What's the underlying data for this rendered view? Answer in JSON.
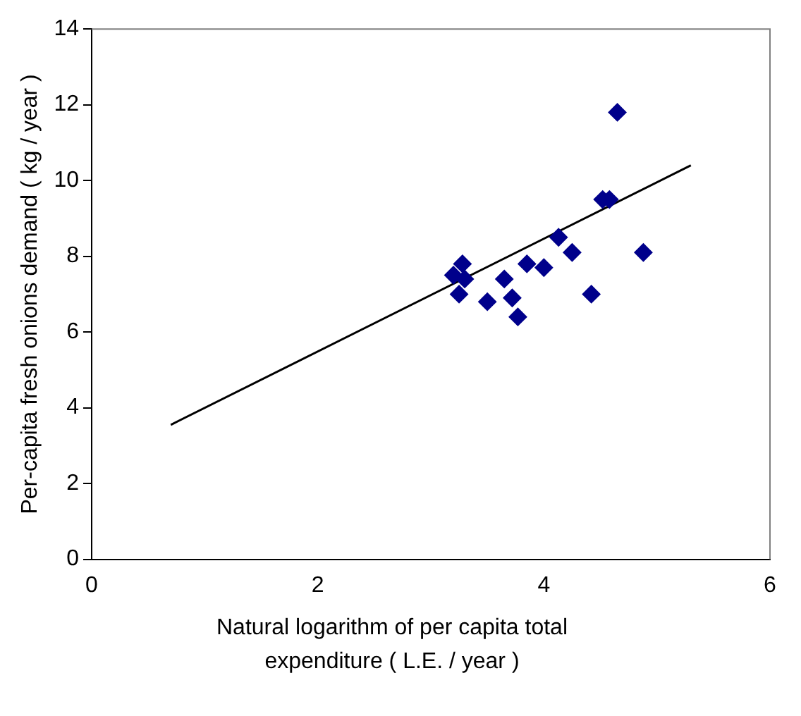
{
  "chart_data": {
    "type": "scatter",
    "xlabel": "Natural logarithm of per capita total expenditure ( L.E. / year )",
    "ylabel": "Per-capita fresh onions demand ( kg / year )",
    "xlim": [
      0,
      6
    ],
    "xticks": [
      0,
      2,
      4,
      6
    ],
    "ylim": [
      0,
      14
    ],
    "yticks": [
      0,
      2,
      4,
      6,
      8,
      10,
      12,
      14
    ],
    "grid": false,
    "legend": false,
    "marker": "diamond",
    "series": [
      {
        "type": "scatter",
        "color": "#00008b",
        "x": [
          3.25,
          3.2,
          3.28,
          3.3,
          3.5,
          3.65,
          3.72,
          3.77,
          3.85,
          4.0,
          4.13,
          4.25,
          4.42,
          4.52,
          4.58,
          4.65,
          4.88
        ],
        "values": [
          7.0,
          7.5,
          7.8,
          7.4,
          6.8,
          7.4,
          6.9,
          6.4,
          7.8,
          7.7,
          8.5,
          8.1,
          7.0,
          9.5,
          9.5,
          11.8,
          8.1
        ]
      },
      {
        "type": "line",
        "color": "#000000",
        "marker": "none",
        "x": [
          0.7,
          5.3
        ],
        "values": [
          3.55,
          10.4
        ]
      }
    ]
  }
}
